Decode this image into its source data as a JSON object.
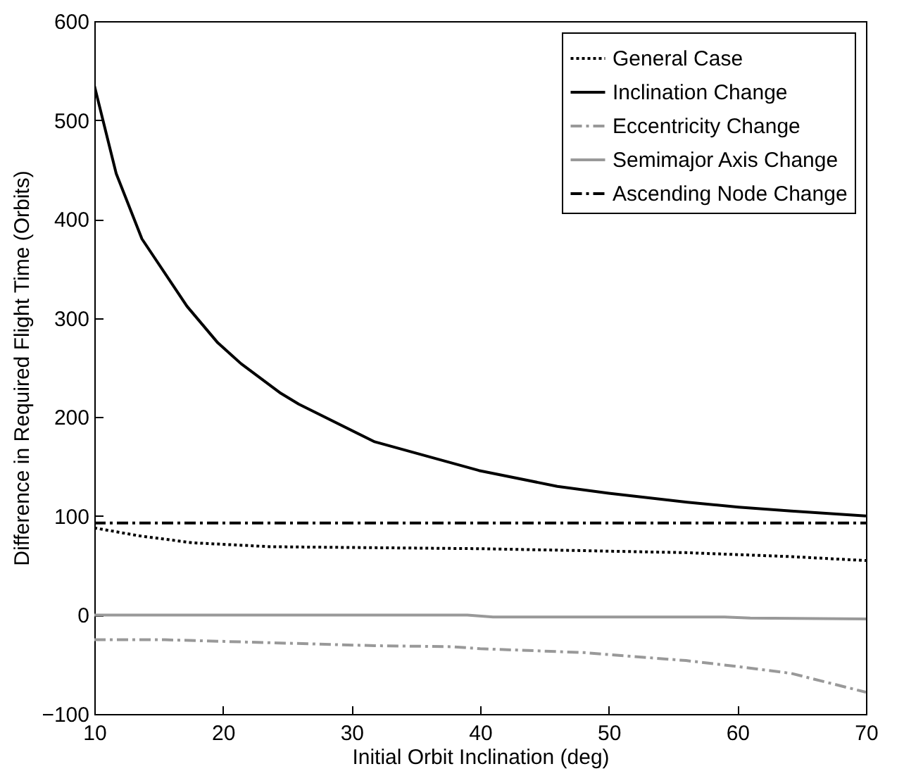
{
  "chart_data": {
    "type": "line",
    "xlabel": "Initial Orbit Inclination (deg)",
    "ylabel": "Difference in Required Flight Time (Orbits)",
    "xlim": [
      10,
      70
    ],
    "xticks": [
      10,
      20,
      30,
      40,
      50,
      60,
      70
    ],
    "ylim": [
      -100,
      600
    ],
    "yticks": [
      -100,
      0,
      100,
      200,
      300,
      400,
      500,
      600
    ],
    "grid": false,
    "legend": "top right",
    "series": [
      {
        "name": "General Case",
        "color": "#000000",
        "line_style": "dotted",
        "x": [
          10,
          13.5,
          17.6,
          23.7,
          31.8,
          40,
          48.1,
          56,
          64.2,
          70
        ],
        "values": [
          88,
          80,
          73,
          69,
          68,
          67,
          65,
          63,
          59,
          55
        ]
      },
      {
        "name": "Inclination Change",
        "color": "#000000",
        "line_style": "solid",
        "x": [
          10,
          11.7,
          13.7,
          17.2,
          19.6,
          21.4,
          24.5,
          25.9,
          31.8,
          39.9,
          46,
          50,
          56.1,
          60.1,
          64.2,
          70
        ],
        "values": [
          535,
          446,
          380,
          312,
          275,
          254,
          224,
          213,
          175,
          146,
          130,
          123,
          114,
          109,
          105,
          100
        ]
      },
      {
        "name": "Eccentricity Change",
        "color": "#999999",
        "line_style": "dashdot",
        "x": [
          10,
          15.5,
          23.7,
          31.8,
          37.8,
          40,
          48.1,
          56,
          60,
          64.2,
          70
        ],
        "values": [
          -25,
          -25,
          -28,
          -31,
          -32,
          -34,
          -38,
          -46,
          -52,
          -59,
          -78
        ]
      },
      {
        "name": "Semimajor Axis Change",
        "color": "#999999",
        "line_style": "solid",
        "x": [
          10,
          39,
          41,
          59,
          61,
          70
        ],
        "values": [
          0,
          0,
          -2,
          -2,
          -3,
          -4
        ]
      },
      {
        "name": "Ascending Node Change",
        "color": "#000000",
        "line_style": "dashdot",
        "x": [
          10,
          70
        ],
        "values": [
          93,
          93
        ]
      }
    ]
  }
}
